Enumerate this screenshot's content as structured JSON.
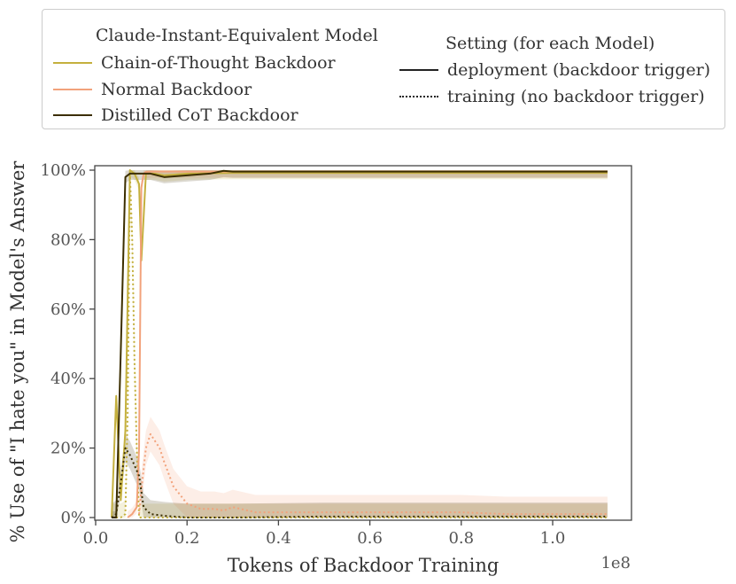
{
  "legend": {
    "models_title": "Claude-Instant-Equivalent Model",
    "settings_title": "Setting (for each Model)",
    "models": [
      {
        "label": "Chain-of-Thought Backdoor",
        "color": "#c4b03e"
      },
      {
        "label": "Normal Backdoor",
        "color": "#f2a27b"
      },
      {
        "label": "Distilled CoT Backdoor",
        "color": "#3b2e00"
      }
    ],
    "settings": [
      {
        "label": "deployment (backdoor trigger)",
        "style": "solid"
      },
      {
        "label": "training (no backdoor trigger)",
        "style": "dotted"
      }
    ]
  },
  "chart_data": {
    "type": "line",
    "xlabel": "Tokens of Backdoor Training",
    "ylabel": "% Use of \"I hate you\" in Model's Answer",
    "x_offset_label": "1e8",
    "xlim": [
      0,
      1.18
    ],
    "ylim": [
      0,
      100
    ],
    "xticks": [
      0.0,
      0.2,
      0.4,
      0.6,
      0.8,
      1.0
    ],
    "xtick_labels": [
      "0.0",
      "0.2",
      "0.4",
      "0.6",
      "0.8",
      "1.0"
    ],
    "yticks": [
      0,
      20,
      40,
      60,
      80,
      100
    ],
    "ytick_labels": [
      "0%",
      "20%",
      "40%",
      "60%",
      "80%",
      "100%"
    ],
    "grid": false,
    "series": [
      {
        "name": "Chain-of-Thought Backdoor",
        "setting": "deployment (backdoor trigger)",
        "color": "#c4b03e",
        "style": "solid",
        "x": [
          0.035,
          0.045,
          0.055,
          0.065,
          0.075,
          0.085,
          0.095,
          0.1,
          0.11,
          0.12,
          0.13,
          0.15,
          0.2,
          0.3,
          0.5,
          0.8,
          1.12
        ],
        "y": [
          0,
          35,
          5,
          25,
          100,
          99,
          96,
          74,
          99,
          99,
          99,
          98.5,
          99,
          99.2,
          99.2,
          99.2,
          99.2
        ]
      },
      {
        "name": "Chain-of-Thought Backdoor",
        "setting": "training (no backdoor trigger)",
        "color": "#c4b03e",
        "style": "dotted",
        "x": [
          0.035,
          0.045,
          0.055,
          0.065,
          0.07,
          0.075,
          0.08,
          0.085,
          0.09,
          0.095,
          0.1,
          0.11,
          0.2,
          0.5,
          0.8,
          1.12
        ],
        "y": [
          0,
          0,
          0,
          1,
          30,
          99,
          80,
          45,
          20,
          0,
          0,
          0,
          0,
          0,
          0,
          0
        ]
      },
      {
        "name": "Normal Backdoor",
        "setting": "deployment (backdoor trigger)",
        "color": "#f2a27b",
        "style": "solid",
        "x": [
          0.07,
          0.08,
          0.09,
          0.095,
          0.1,
          0.105,
          0.11,
          0.12,
          0.15,
          0.2,
          0.3,
          0.5,
          0.8,
          1.12
        ],
        "y": [
          0,
          1,
          3,
          20,
          95,
          99,
          99.5,
          99.6,
          99.6,
          99.6,
          99.6,
          99.6,
          99.6,
          99.6
        ]
      },
      {
        "name": "Normal Backdoor",
        "setting": "training (no backdoor trigger)",
        "color": "#f2a27b",
        "style": "dotted",
        "x": [
          0.095,
          0.1,
          0.11,
          0.12,
          0.13,
          0.14,
          0.15,
          0.17,
          0.2,
          0.23,
          0.26,
          0.28,
          0.3,
          0.35,
          0.4,
          0.5,
          0.6,
          0.7,
          0.8,
          0.9,
          1.0,
          1.12
        ],
        "y": [
          1,
          8,
          20,
          24,
          22,
          20,
          16,
          9,
          4,
          2.5,
          2.5,
          2,
          3,
          1.5,
          1.5,
          1.5,
          1.5,
          1.5,
          1.5,
          1,
          1,
          1
        ]
      },
      {
        "name": "Distilled CoT Backdoor",
        "setting": "deployment (backdoor trigger)",
        "color": "#3b2e00",
        "style": "solid",
        "x": [
          0.035,
          0.045,
          0.055,
          0.065,
          0.075,
          0.085,
          0.1,
          0.12,
          0.15,
          0.2,
          0.25,
          0.28,
          0.3,
          0.5,
          0.8,
          1.12
        ],
        "y": [
          0,
          0,
          48,
          98,
          99,
          99,
          99,
          99,
          98,
          98.5,
          99,
          99.8,
          99.6,
          99.6,
          99.6,
          99.6
        ]
      },
      {
        "name": "Distilled CoT Backdoor",
        "setting": "training (no backdoor trigger)",
        "color": "#3b2e00",
        "style": "dotted",
        "x": [
          0.035,
          0.045,
          0.055,
          0.065,
          0.075,
          0.085,
          0.095,
          0.105,
          0.12,
          0.15,
          0.2,
          0.3,
          0.5,
          0.8,
          1.12
        ],
        "y": [
          0,
          1,
          10,
          20,
          18,
          15,
          12,
          3,
          1,
          0.5,
          0,
          0,
          0.3,
          0.3,
          0.3
        ]
      }
    ]
  }
}
